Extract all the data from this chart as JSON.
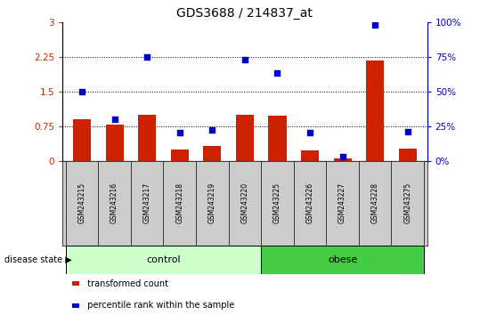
{
  "title": "GDS3688 / 214837_at",
  "samples": [
    "GSM243215",
    "GSM243216",
    "GSM243217",
    "GSM243218",
    "GSM243219",
    "GSM243220",
    "GSM243225",
    "GSM243226",
    "GSM243227",
    "GSM243228",
    "GSM243275"
  ],
  "bar_values": [
    0.9,
    0.78,
    1.0,
    0.25,
    0.32,
    1.0,
    0.97,
    0.22,
    0.05,
    2.17,
    0.27
  ],
  "dot_values": [
    50,
    30,
    75,
    20,
    22,
    73,
    63,
    20,
    3,
    98,
    21
  ],
  "groups": [
    {
      "label": "control",
      "start": 0,
      "end": 5,
      "color": "#ccffcc"
    },
    {
      "label": "obese",
      "start": 6,
      "end": 10,
      "color": "#44cc44"
    }
  ],
  "bar_color": "#cc2200",
  "dot_color": "#0000cc",
  "ylim_left": [
    0,
    3
  ],
  "ylim_right": [
    0,
    100
  ],
  "yticks_left": [
    0,
    0.75,
    1.5,
    2.25,
    3
  ],
  "yticks_right": [
    0,
    25,
    50,
    75,
    100
  ],
  "ytick_labels_left": [
    "0",
    "0.75",
    "1.5",
    "2.25",
    "3"
  ],
  "ytick_labels_right": [
    "0%",
    "25%",
    "50%",
    "75%",
    "100%"
  ],
  "hlines": [
    0.75,
    1.5,
    2.25
  ],
  "disease_state_label": "disease state",
  "legend_bar_label": "transformed count",
  "legend_dot_label": "percentile rank within the sample",
  "background_color": "#ffffff",
  "sample_area_color": "#cccccc",
  "control_color": "#ccffcc",
  "obese_color": "#44cc44"
}
